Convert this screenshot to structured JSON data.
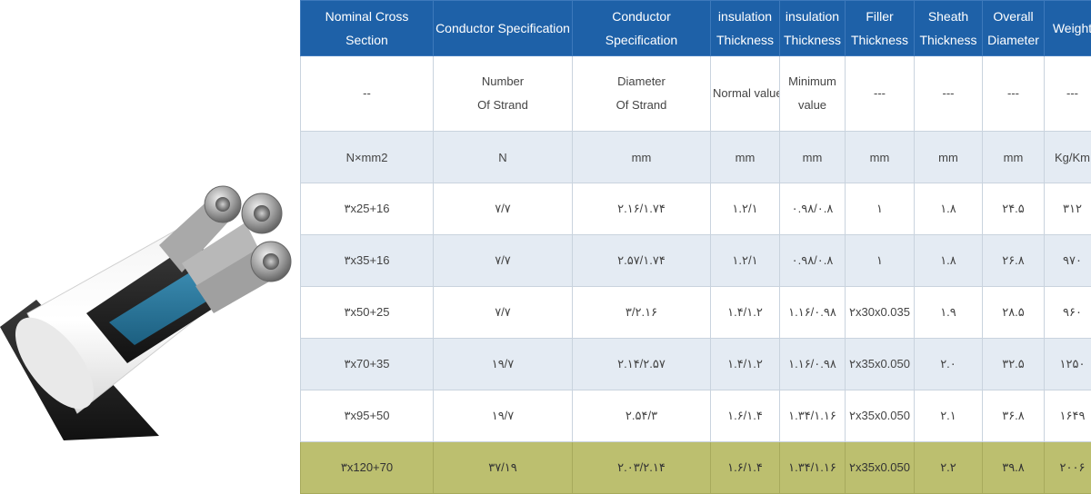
{
  "header": [
    {
      "lines": [
        "Nominal Cross Section"
      ]
    },
    {
      "lines": [
        "Conductor Specification"
      ]
    },
    {
      "lines": [
        "Conductor Specification"
      ]
    },
    {
      "lines": [
        "insulation",
        "Thickness"
      ]
    },
    {
      "lines": [
        "insulation",
        "Thickness"
      ]
    },
    {
      "lines": [
        "Filler",
        "Thickness"
      ]
    },
    {
      "lines": [
        "Sheath",
        "Thickness"
      ]
    },
    {
      "lines": [
        "Overall",
        "Diameter"
      ]
    },
    {
      "lines": [
        "Weight"
      ]
    }
  ],
  "description_row": [
    [
      "--"
    ],
    [
      "Number",
      "Of Strand"
    ],
    [
      "Diameter",
      "Of Strand"
    ],
    [
      "Normal value"
    ],
    [
      "Minimum",
      "value"
    ],
    [
      "---"
    ],
    [
      "---"
    ],
    [
      "---"
    ],
    [
      "---"
    ]
  ],
  "units_row": [
    "N×mm2",
    "N",
    "mm",
    "mm",
    "mm",
    "mm",
    "mm",
    "mm",
    "Kg/Km"
  ],
  "data_rows": [
    [
      "۳x25+16",
      "۷/۷",
      "۲.۱۶/۱.۷۴",
      "۱.۲/۱",
      "۰.۹۸/۰.۸",
      "۱",
      "۱.۸",
      "۲۴.۵",
      "۳۱۲"
    ],
    [
      "۳x35+16",
      "۷/۷",
      "۲.۵۷/۱.۷۴",
      "۱.۲/۱",
      "۰.۹۸/۰.۸",
      "۱",
      "۱.۸",
      "۲۶.۸",
      "۹۷۰"
    ],
    [
      "۳x50+25",
      "۷/۷",
      "۳/۲.۱۶",
      "۱.۴/۱.۲",
      "۱.۱۶/۰.۹۸",
      "۲x30x0.035",
      "۱.۹",
      "۲۸.۵",
      "۹۶۰"
    ],
    [
      "۳x70+35",
      "۱۹/۷",
      "۲.۱۴/۲.۵۷",
      "۱.۴/۱.۲",
      "۱.۱۶/۰.۹۸",
      "۲x35x0.050",
      "۲.۰",
      "۳۲.۵",
      "۱۲۵۰"
    ],
    [
      "۳x95+50",
      "۱۹/۷",
      "۲.۵۴/۳",
      "۱.۶/۱.۴",
      "۱.۳۴/۱.۱۶",
      "۲x35x0.050",
      "۲.۱",
      "۳۶.۸",
      "۱۶۴۹"
    ],
    [
      "۳x120+70",
      "۳۷/۱۹",
      "۲.۰۳/۲.۱۴",
      "۱.۶/۱.۴",
      "۱.۳۴/۱.۱۶",
      "۲x35x0.050",
      "۲.۲",
      "۳۹.۸",
      "۲۰۰۶"
    ]
  ],
  "colors": {
    "header_bg": "#1e61a8",
    "alt_row_bg": "#e4ebf3",
    "highlight_row_bg": "#bcbf6f"
  }
}
